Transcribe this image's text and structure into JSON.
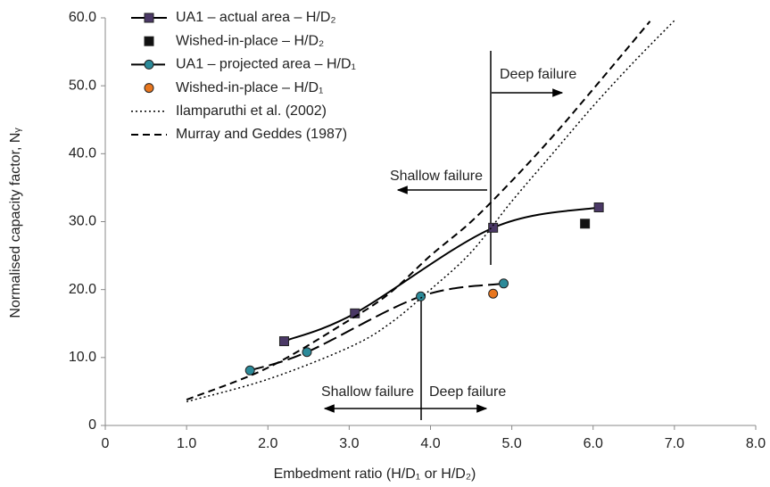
{
  "chart_data": {
    "type": "line",
    "x_label": "Embedment ratio (H/D₁ or H/D₂)",
    "y_label": "Normalised capacity factor, Nᵧ",
    "xlim": [
      0,
      8
    ],
    "ylim": [
      0,
      60
    ],
    "xticks": [
      0,
      {
        "value": 1,
        "label": "1.0"
      },
      {
        "value": 2,
        "label": "2.0"
      },
      {
        "value": 3,
        "label": "3.0"
      },
      {
        "value": 4,
        "label": "4.0"
      },
      {
        "value": 5,
        "label": "5.0"
      },
      {
        "value": 6,
        "label": "6.0"
      },
      {
        "value": 7,
        "label": "7.0"
      },
      {
        "value": 8,
        "label": "8.0"
      }
    ],
    "yticks": [
      0,
      {
        "value": 10,
        "label": "10.0"
      },
      {
        "value": 20,
        "label": "20.0"
      },
      {
        "value": 30,
        "label": "30.0"
      },
      {
        "value": 40,
        "label": "40.0"
      },
      {
        "value": 50,
        "label": "50.0"
      },
      {
        "value": 60,
        "label": "60.0"
      }
    ],
    "grid": false,
    "legend": "top-left",
    "series": [
      {
        "name": "UA1 – actual area – H/D₂",
        "color": "#000000",
        "marker": "square",
        "marker_color": "#4a3866",
        "line": "solid",
        "x": [
          2.2,
          3.07,
          4.77,
          6.07
        ],
        "values": [
          12.4,
          16.5,
          29.1,
          32.1
        ]
      },
      {
        "name": "Wished-in-place – H/D₂",
        "color": "#000000",
        "marker": "square",
        "marker_color": "#111111",
        "line": "none",
        "x": [
          5.9
        ],
        "values": [
          29.7
        ]
      },
      {
        "name": "UA1 – projected area – H/D₁",
        "color": "#000000",
        "marker": "circle",
        "marker_color": "#2b8a99",
        "line": "longdash",
        "x": [
          1.78,
          2.48,
          3.88,
          4.9
        ],
        "values": [
          8.1,
          10.8,
          19.0,
          20.9
        ]
      },
      {
        "name": "Wished-in-place – H/D₁",
        "color": "#000000",
        "marker": "circle",
        "marker_color": "#e8761e",
        "line": "none",
        "x": [
          4.77
        ],
        "values": [
          19.4
        ]
      },
      {
        "name": "Ilamparuthi et al. (2002)",
        "color": "#000000",
        "marker": "none",
        "line": "dotted",
        "x": [
          1.0,
          2.0,
          3.0,
          3.5,
          4.0,
          4.5,
          5.0,
          5.5,
          6.0,
          6.5,
          7.0
        ],
        "values": [
          3.5,
          6.8,
          11.5,
          15,
          20,
          25.5,
          33,
          40,
          47,
          53.5,
          59.6
        ]
      },
      {
        "name": "Murray and Geddes (1987)",
        "color": "#000000",
        "marker": "none",
        "line": "dashed",
        "x": [
          1.0,
          2.0,
          3.0,
          3.5,
          4.0,
          4.5,
          5.0,
          5.5,
          6.0,
          6.7
        ],
        "values": [
          3.8,
          8.5,
          15.5,
          19.5,
          25,
          30,
          36,
          42.5,
          49.5,
          59.5
        ]
      }
    ],
    "annotations": [
      "Deep failure",
      "Shallow failure",
      "Shallow failure",
      "Deep failure"
    ]
  }
}
